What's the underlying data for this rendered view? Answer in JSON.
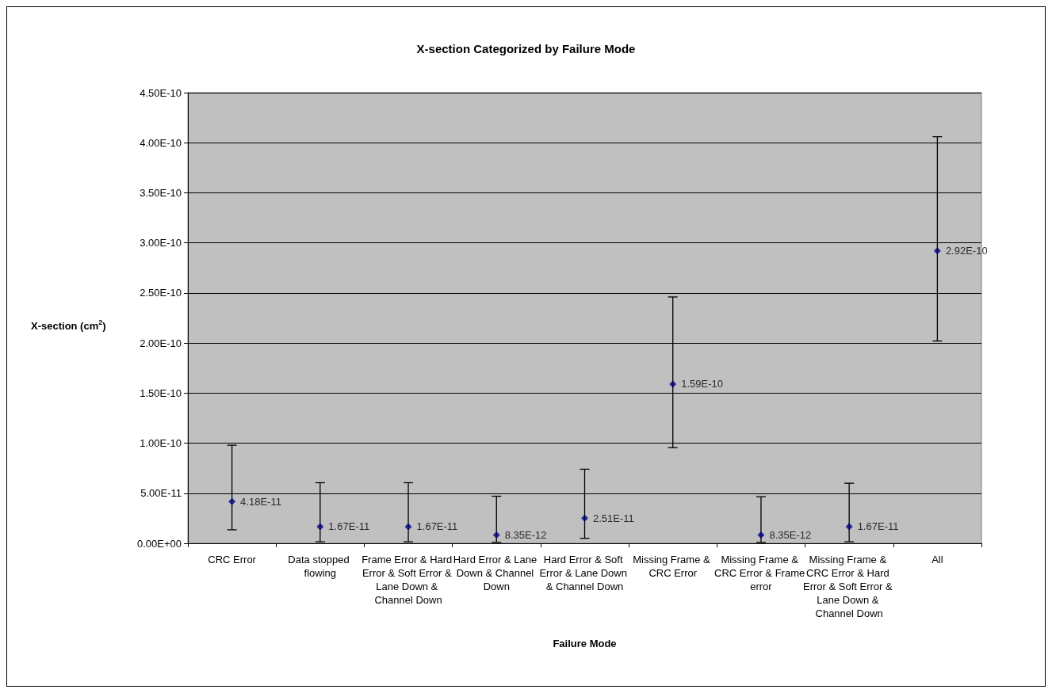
{
  "chart_data": {
    "type": "scatter",
    "title": "X-section Categorized by Failure Mode",
    "xlabel": "Failure Mode",
    "ylabel": "X-section (cm$^{2}$)",
    "categories": [
      "CRC Error",
      "Data stopped flowing",
      "Frame Error & Hard Error & Soft Error & Lane Down & Channel Down",
      "Hard Error & Lane Down & Channel Down",
      "Hard Error & Soft Error & Lane Down & Channel Down",
      "Missing Frame & CRC Error",
      "Missing Frame & CRC Error & Frame error",
      "Missing Frame & CRC Error & Hard Error & Soft Error & Lane Down & Channel Down",
      "All"
    ],
    "values": [
      4.18e-11,
      1.67e-11,
      1.67e-11,
      8.35e-12,
      2.51e-11,
      1.59e-10,
      8.35e-12,
      1.67e-11,
      2.92e-10
    ],
    "value_labels": [
      "4.18E-11",
      "1.67E-11",
      "1.67E-11",
      "8.35E-12",
      "2.51E-11",
      "1.59E-10",
      "8.35E-12",
      "1.67E-11",
      "2.92E-10"
    ],
    "errors": [
      [
        1.35e-11,
        9.8e-11
      ],
      [
        1.5e-12,
        6.05e-11
      ],
      [
        1.5e-12,
        6.05e-11
      ],
      [
        1e-12,
        4.7e-11
      ],
      [
        5e-12,
        7.4e-11
      ],
      [
        9.55e-11,
        2.46e-10
      ],
      [
        1e-12,
        4.65e-11
      ],
      [
        1.5e-12,
        6e-11
      ],
      [
        2.02e-10,
        4.06e-10
      ]
    ],
    "color": "#000080",
    "marker": "diamond",
    "grid": "y",
    "ylim": [
      0,
      4.5e-10
    ],
    "yticks": [
      {
        "value": 0,
        "label": "0.00E+00"
      },
      {
        "value": 5e-11,
        "label": "5.00E-11"
      },
      {
        "value": 1e-10,
        "label": "1.00E-10"
      },
      {
        "value": 1.5e-10,
        "label": "1.50E-10"
      },
      {
        "value": 2e-10,
        "label": "2.00E-10"
      },
      {
        "value": 2.5e-10,
        "label": "2.50E-10"
      },
      {
        "value": 3e-10,
        "label": "3.00E-10"
      },
      {
        "value": 3.5e-10,
        "label": "3.50E-10"
      },
      {
        "value": 4e-10,
        "label": "4.00E-10"
      },
      {
        "value": 4.5e-10,
        "label": "4.50E-10"
      }
    ]
  }
}
